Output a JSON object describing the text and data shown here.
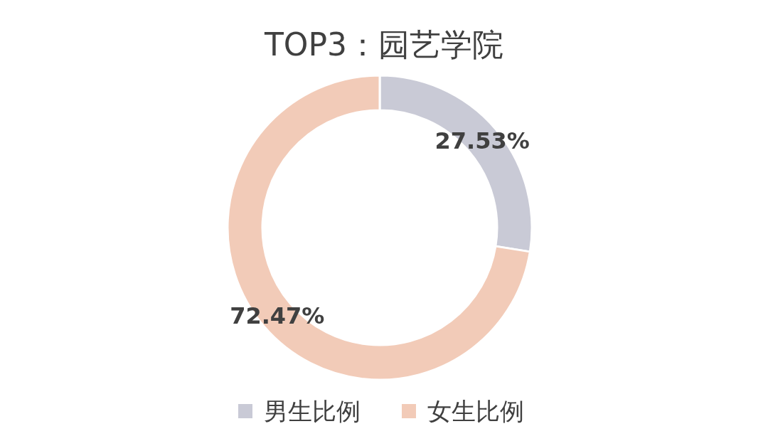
{
  "chart_data": {
    "type": "donut",
    "title": "TOP3：园艺学院",
    "categories": [
      "男生比例",
      "女生比例"
    ],
    "values": [
      27.53,
      72.47
    ],
    "colors": [
      "#c9cad6",
      "#f2cbb8"
    ],
    "value_labels": [
      "27.53%",
      "72.47%"
    ],
    "legend": "bottom"
  }
}
